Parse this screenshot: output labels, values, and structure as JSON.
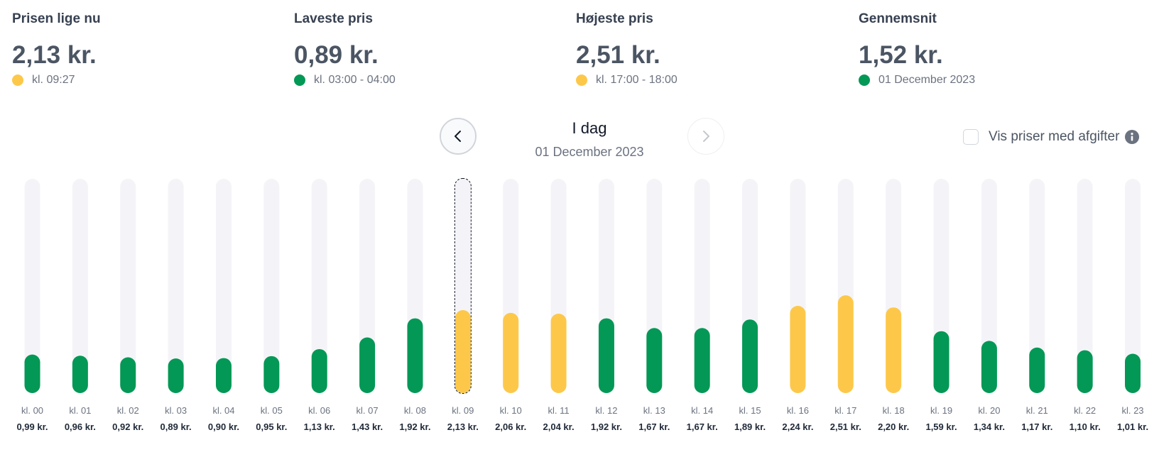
{
  "stats": [
    {
      "label": "Prisen lige nu",
      "value": "2,13 kr.",
      "sub": "kl. 09:27",
      "dot_color": "#fdc84a"
    },
    {
      "label": "Laveste pris",
      "value": "0,89 kr.",
      "sub": "kl. 03:00 - 04:00",
      "dot_color": "#039855"
    },
    {
      "label": "Højeste pris",
      "value": "2,51 kr.",
      "sub": "kl. 17:00 - 18:00",
      "dot_color": "#fdc84a"
    },
    {
      "label": "Gennemsnit",
      "value": "1,52 kr.",
      "sub": "01 December 2023",
      "dot_color": "#039855"
    }
  ],
  "nav": {
    "day_label": "I dag",
    "date_label": "01 December 2023",
    "prev_icon": "chevron-left-icon",
    "next_icon": "chevron-right-icon"
  },
  "toggle": {
    "label": "Vis priser med afgifter",
    "checked": false,
    "info_icon": "info-icon"
  },
  "colors": {
    "green": "#039855",
    "yellow": "#fdc84a",
    "track": "#f4f4f8"
  },
  "chart_data": {
    "type": "bar",
    "categories": [
      "kl. 00",
      "kl. 01",
      "kl. 02",
      "kl. 03",
      "kl. 04",
      "kl. 05",
      "kl. 06",
      "kl. 07",
      "kl. 08",
      "kl. 09",
      "kl. 10",
      "kl. 11",
      "kl. 12",
      "kl. 13",
      "kl. 14",
      "kl. 15",
      "kl. 16",
      "kl. 17",
      "kl. 18",
      "kl. 19",
      "kl. 20",
      "kl. 21",
      "kl. 22",
      "kl. 23"
    ],
    "values": [
      0.99,
      0.96,
      0.92,
      0.89,
      0.9,
      0.95,
      1.13,
      1.43,
      1.92,
      2.13,
      2.06,
      2.04,
      1.92,
      1.67,
      1.67,
      1.89,
      2.24,
      2.51,
      2.2,
      1.59,
      1.34,
      1.17,
      1.1,
      1.01
    ],
    "value_labels": [
      "0,99 kr.",
      "0,96 kr.",
      "0,92 kr.",
      "0,89 kr.",
      "0,90 kr.",
      "0,95 kr.",
      "1,13 kr.",
      "1,43 kr.",
      "1,92 kr.",
      "2,13 kr.",
      "2,06 kr.",
      "2,04 kr.",
      "1,92 kr.",
      "1,67 kr.",
      "1,67 kr.",
      "1,89 kr.",
      "2,24 kr.",
      "2,51 kr.",
      "2,20 kr.",
      "1,59 kr.",
      "1,34 kr.",
      "1,17 kr.",
      "1,10 kr.",
      "1,01 kr."
    ],
    "bar_colors": [
      "green",
      "green",
      "green",
      "green",
      "green",
      "green",
      "green",
      "green",
      "green",
      "yellow",
      "yellow",
      "yellow",
      "green",
      "green",
      "green",
      "green",
      "yellow",
      "yellow",
      "yellow",
      "green",
      "green",
      "green",
      "green",
      "green"
    ],
    "current_index": 9,
    "ylim": [
      0,
      5.5
    ],
    "title": "",
    "xlabel": "",
    "ylabel": "",
    "grid": false,
    "legend": "none"
  }
}
